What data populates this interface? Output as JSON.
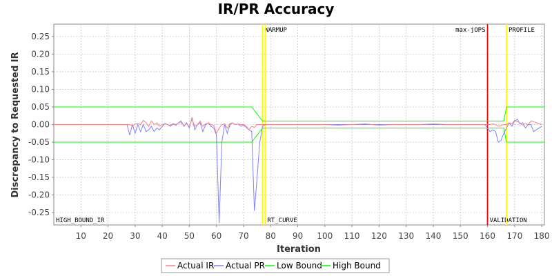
{
  "chart_data": {
    "type": "line",
    "title": "IR/PR Accuracy",
    "xlabel": "Iteration",
    "ylabel": "Discrepancy to Requested IR",
    "xlim": [
      0,
      181
    ],
    "ylim": [
      -0.285,
      0.285
    ],
    "x_ticks": [
      10,
      20,
      30,
      40,
      50,
      60,
      70,
      80,
      90,
      100,
      110,
      120,
      130,
      140,
      150,
      160,
      170,
      180
    ],
    "y_ticks": [
      -0.25,
      -0.2,
      -0.15,
      -0.1,
      -0.05,
      0.0,
      0.05,
      0.1,
      0.15,
      0.2,
      0.25
    ],
    "y_tick_labels": [
      "-0.25",
      "-0.20",
      "-0.15",
      "-0.10",
      "-0.05",
      "0.00",
      "0.05",
      "0.10",
      "0.15",
      "0.20",
      "0.25"
    ],
    "grid": true,
    "legend_position": "bottom-center",
    "markers": [
      {
        "label": "HIGH_BOUND_IR",
        "x": 0,
        "color": "#ffff00",
        "label_pos": "bottom-right"
      },
      {
        "label": "WARMUP",
        "x": 77,
        "color": "#ffff00",
        "label_pos": "top-right"
      },
      {
        "label": "RT_CURVE",
        "x": 78,
        "color": "#ffff00",
        "label_pos": "bottom-right"
      },
      {
        "label": "max-jOPS",
        "x": 160,
        "color": "#ff0000",
        "label_pos": "top-left"
      },
      {
        "label": "VALIDATION",
        "x": 160,
        "color": "#ff0000",
        "label_pos": "bottom-right"
      },
      {
        "label": "PROFILE",
        "x": 167,
        "color": "#ffff00",
        "label_pos": "top-right"
      }
    ],
    "series": [
      {
        "name": "Actual IR",
        "color": "#ff8080",
        "points": [
          [
            0,
            0
          ],
          [
            27,
            0
          ],
          [
            28,
            0
          ],
          [
            29,
            -0.005
          ],
          [
            30,
            0.002
          ],
          [
            31,
            0.003
          ],
          [
            32,
            0.0
          ],
          [
            33,
            0.012
          ],
          [
            34,
            0.005
          ],
          [
            35,
            -0.005
          ],
          [
            36,
            0.01
          ],
          [
            37,
            0.0
          ],
          [
            38,
            0.005
          ],
          [
            39,
            -0.005
          ],
          [
            40,
            0.0
          ],
          [
            41,
            0.002
          ],
          [
            42,
            0.0
          ],
          [
            43,
            -0.002
          ],
          [
            44,
            0.003
          ],
          [
            45,
            0.0
          ],
          [
            46,
            0.005
          ],
          [
            47,
            0.005
          ],
          [
            48,
            -0.003
          ],
          [
            49,
            0.002
          ],
          [
            50,
            -0.005
          ],
          [
            51,
            0.015
          ],
          [
            52,
            -0.005
          ],
          [
            53,
            0.0
          ],
          [
            54,
            0.01
          ],
          [
            55,
            -0.005
          ],
          [
            56,
            0.002
          ],
          [
            57,
            0.005
          ],
          [
            58,
            0.0
          ],
          [
            59,
            -0.002
          ],
          [
            60,
            -0.025
          ],
          [
            61,
            -0.01
          ],
          [
            62,
            0.0
          ],
          [
            63,
            0.002
          ],
          [
            64,
            -0.01
          ],
          [
            65,
            0.003
          ],
          [
            66,
            0.005
          ],
          [
            67,
            0.0
          ],
          [
            68,
            0.002
          ],
          [
            69,
            0.0
          ],
          [
            70,
            0.0
          ],
          [
            71,
            -0.005
          ],
          [
            72,
            -0.015
          ],
          [
            73,
            -0.005
          ],
          [
            74,
            -0.008
          ],
          [
            75,
            0.0
          ],
          [
            76,
            0.0
          ],
          [
            80,
            0.0
          ],
          [
            90,
            0.0
          ],
          [
            95,
            0.0
          ],
          [
            100,
            0.0
          ],
          [
            105,
            -0.002
          ],
          [
            110,
            0.0
          ],
          [
            115,
            0.002
          ],
          [
            120,
            -0.002
          ],
          [
            125,
            0.0
          ],
          [
            130,
            0.0
          ],
          [
            135,
            0.0
          ],
          [
            140,
            0.002
          ],
          [
            145,
            0.0
          ],
          [
            150,
            0.0
          ],
          [
            155,
            0.0
          ],
          [
            160,
            0.0
          ],
          [
            161,
            0.0
          ],
          [
            162,
            0.002
          ],
          [
            163,
            0.0
          ],
          [
            164,
            -0.005
          ],
          [
            165,
            -0.003
          ],
          [
            166,
            0.0
          ],
          [
            167,
            0.0
          ],
          [
            168,
            0.005
          ],
          [
            169,
            0.002
          ],
          [
            170,
            0.012
          ],
          [
            171,
            0.008
          ],
          [
            172,
            0.005
          ],
          [
            173,
            -0.002
          ],
          [
            174,
            0.003
          ],
          [
            175,
            0.0
          ],
          [
            176,
            0.01
          ],
          [
            177,
            0.008
          ],
          [
            178,
            0.005
          ],
          [
            179,
            0.003
          ],
          [
            180,
            0.0
          ]
        ]
      },
      {
        "name": "Actual PR",
        "color": "#8080ff",
        "points": [
          [
            0,
            0
          ],
          [
            27,
            0
          ],
          [
            28,
            -0.03
          ],
          [
            29,
            0.0
          ],
          [
            30,
            -0.025
          ],
          [
            31,
            0.0
          ],
          [
            32,
            -0.02
          ],
          [
            33,
            0.0
          ],
          [
            34,
            -0.02
          ],
          [
            35,
            -0.015
          ],
          [
            36,
            -0.005
          ],
          [
            37,
            -0.02
          ],
          [
            38,
            -0.01
          ],
          [
            39,
            -0.015
          ],
          [
            40,
            -0.005
          ],
          [
            41,
            0.003
          ],
          [
            42,
            0.0
          ],
          [
            43,
            -0.005
          ],
          [
            44,
            0.002
          ],
          [
            45,
            -0.002
          ],
          [
            46,
            0.005
          ],
          [
            47,
            0.01
          ],
          [
            48,
            -0.005
          ],
          [
            49,
            0.005
          ],
          [
            50,
            -0.01
          ],
          [
            51,
            0.02
          ],
          [
            52,
            -0.015
          ],
          [
            53,
            0.0
          ],
          [
            54,
            0.005
          ],
          [
            55,
            -0.02
          ],
          [
            56,
            0.0
          ],
          [
            57,
            0.005
          ],
          [
            58,
            -0.005
          ],
          [
            59,
            -0.01
          ],
          [
            60,
            -0.03
          ],
          [
            61,
            -0.28
          ],
          [
            62,
            -0.05
          ],
          [
            63,
            0.0
          ],
          [
            64,
            -0.025
          ],
          [
            65,
            0.0
          ],
          [
            66,
            0.005
          ],
          [
            67,
            0.0
          ],
          [
            68,
            0.002
          ],
          [
            69,
            -0.005
          ],
          [
            70,
            -0.002
          ],
          [
            71,
            -0.008
          ],
          [
            72,
            -0.015
          ],
          [
            73,
            -0.02
          ],
          [
            74,
            -0.245
          ],
          [
            75,
            -0.15
          ],
          [
            76,
            -0.05
          ],
          [
            77,
            -0.005
          ],
          [
            78,
            0.0
          ],
          [
            80,
            0.0
          ],
          [
            90,
            0.0
          ],
          [
            100,
            0.0
          ],
          [
            110,
            0.0
          ],
          [
            120,
            0.0
          ],
          [
            130,
            0.0
          ],
          [
            140,
            0.0
          ],
          [
            150,
            0.0
          ],
          [
            155,
            0.0
          ],
          [
            159,
            0.0
          ],
          [
            160,
            -0.01
          ],
          [
            161,
            -0.02
          ],
          [
            162,
            -0.015
          ],
          [
            163,
            -0.02
          ],
          [
            164,
            -0.05
          ],
          [
            165,
            -0.045
          ],
          [
            166,
            -0.025
          ],
          [
            167,
            -0.01
          ],
          [
            168,
            0.005
          ],
          [
            169,
            -0.005
          ],
          [
            170,
            0.01
          ],
          [
            171,
            0.015
          ],
          [
            172,
            0.002
          ],
          [
            173,
            0.005
          ],
          [
            174,
            -0.01
          ],
          [
            175,
            0.0
          ],
          [
            176,
            0.0
          ],
          [
            177,
            -0.02
          ],
          [
            178,
            -0.015
          ],
          [
            179,
            -0.01
          ],
          [
            180,
            -0.005
          ]
        ]
      },
      {
        "name": "Low Bound",
        "color": "#00ff00",
        "points": [
          [
            0,
            -0.05
          ],
          [
            73,
            -0.05
          ],
          [
            77,
            -0.01
          ],
          [
            166,
            -0.01
          ],
          [
            167,
            -0.05
          ],
          [
            181,
            -0.05
          ]
        ]
      },
      {
        "name": "High Bound",
        "color": "#00ff00",
        "points": [
          [
            0,
            0.05
          ],
          [
            73,
            0.05
          ],
          [
            77,
            0.01
          ],
          [
            166,
            0.01
          ],
          [
            167,
            0.05
          ],
          [
            181,
            0.05
          ]
        ]
      }
    ]
  }
}
